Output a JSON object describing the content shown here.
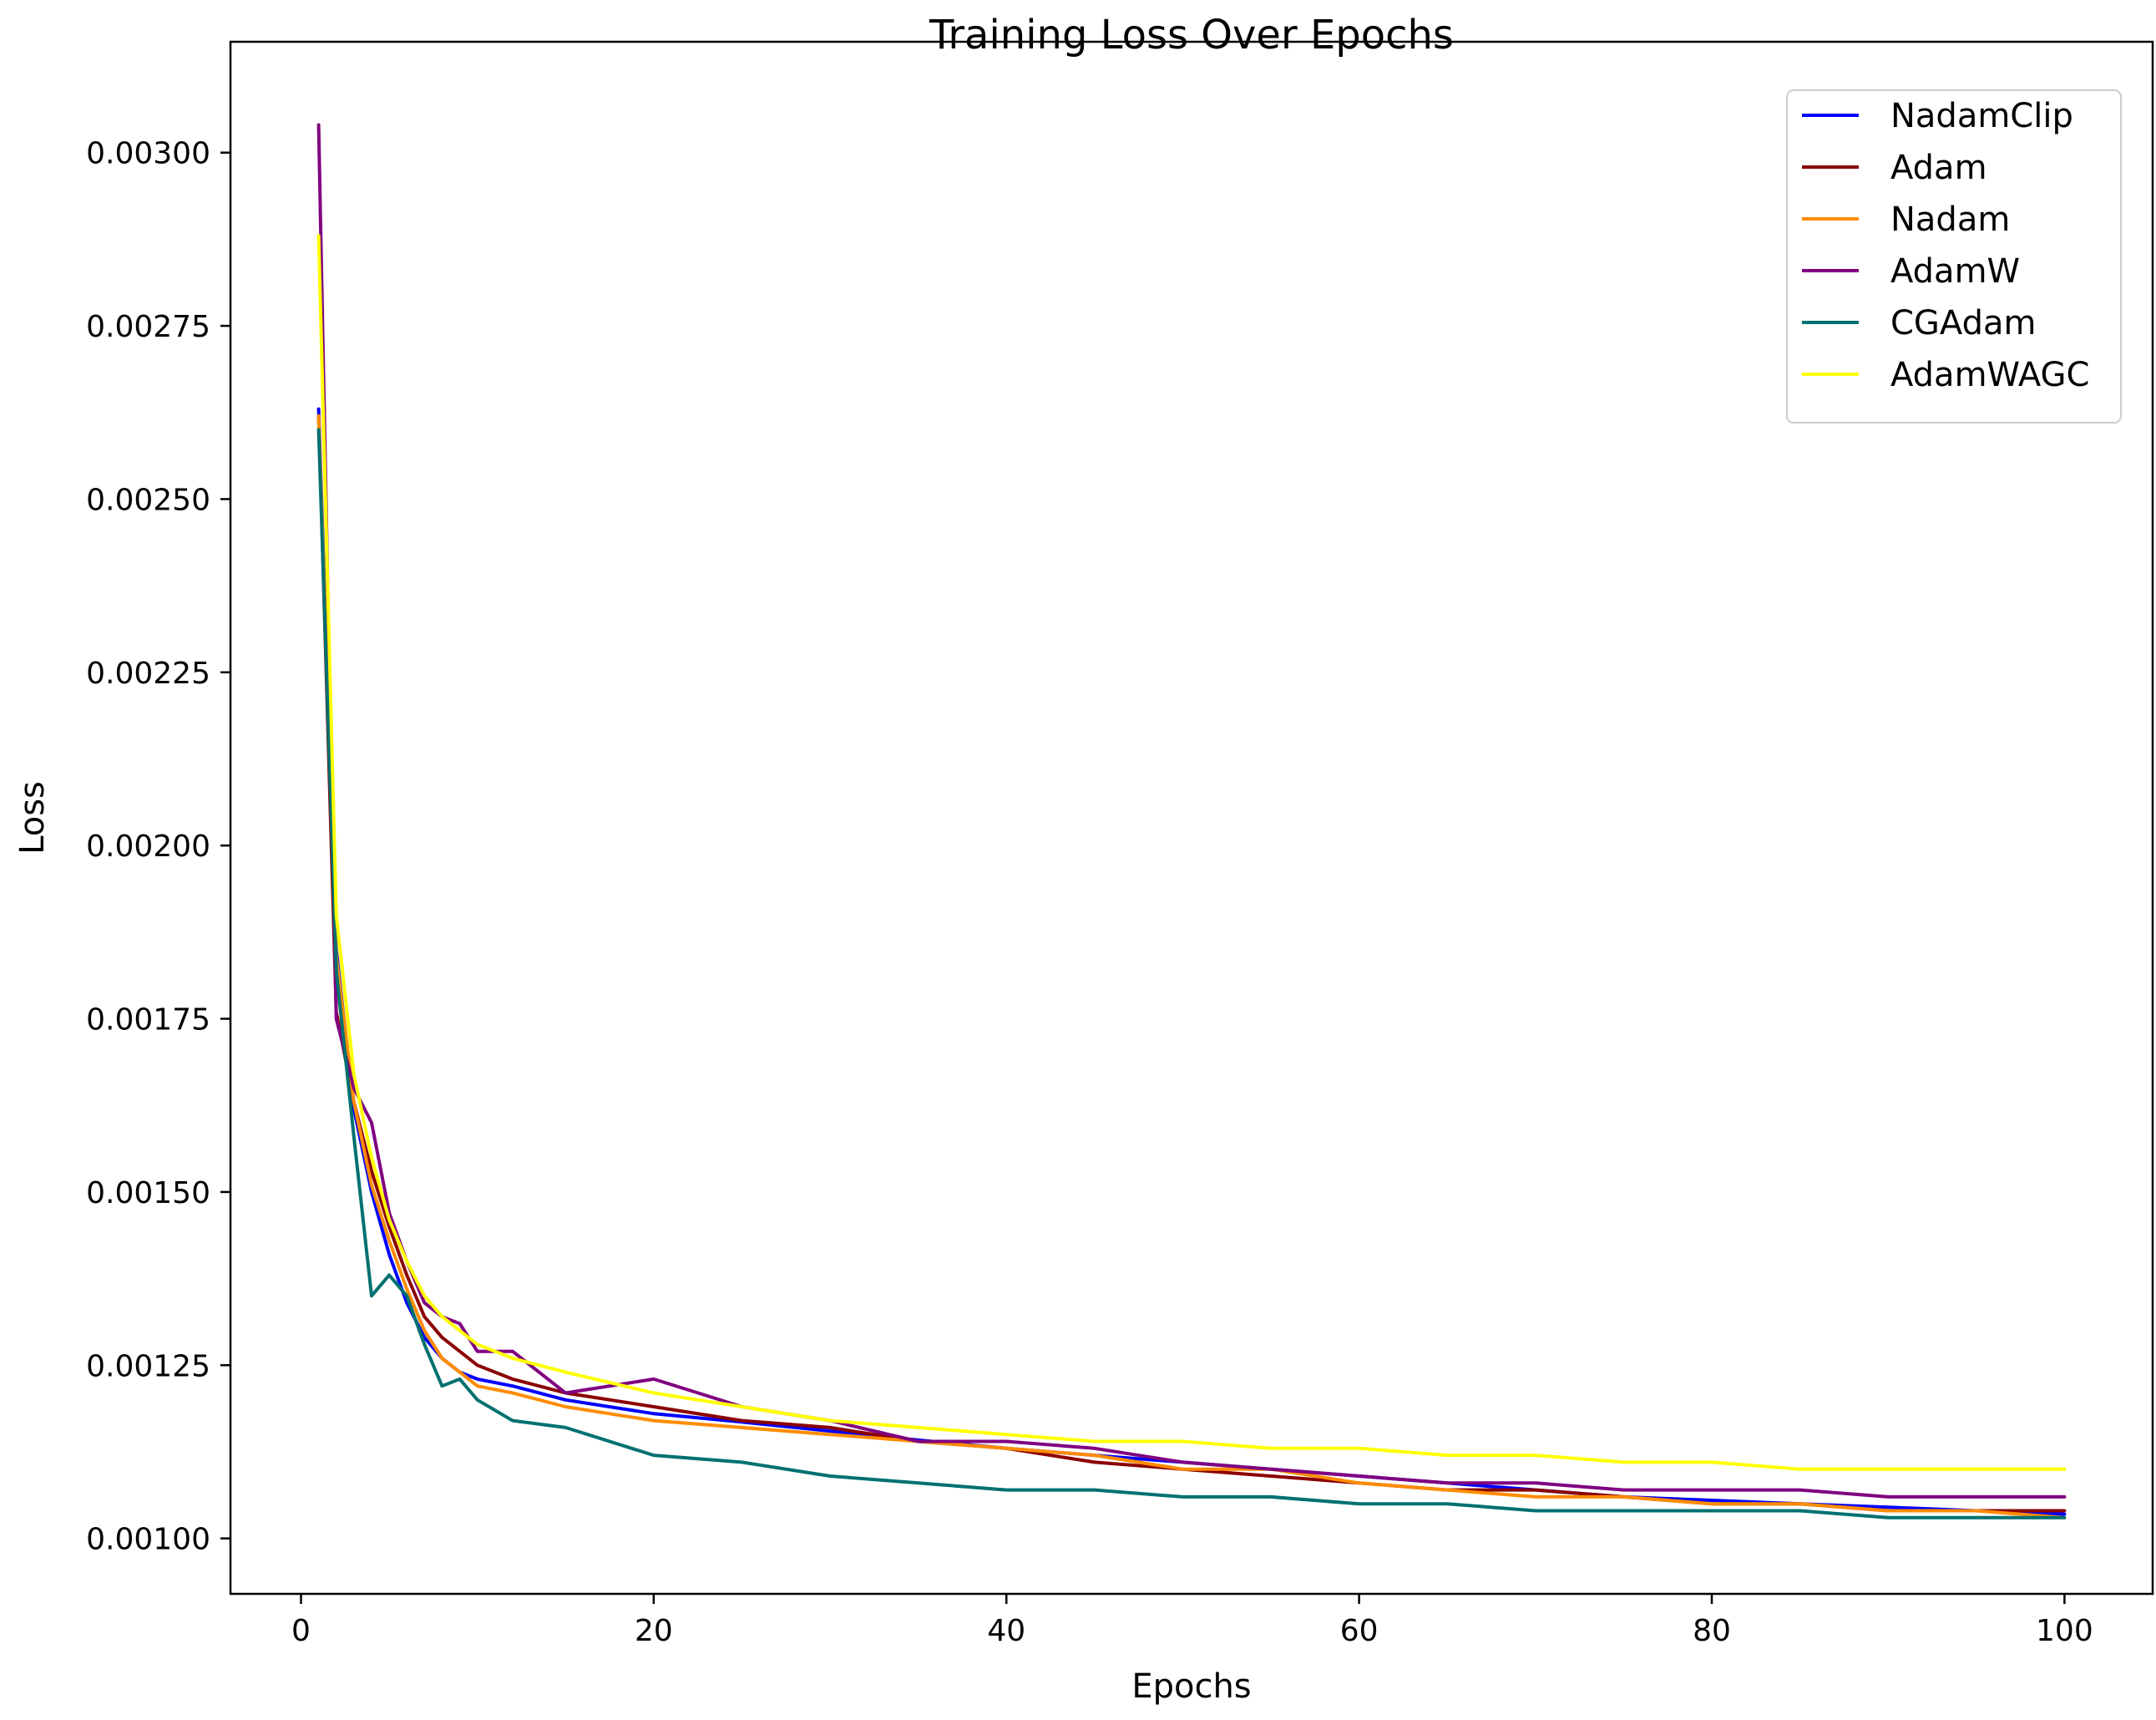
{
  "chart_data": {
    "type": "line",
    "title": "Training Loss Over Epochs",
    "xlabel": "Epochs",
    "ylabel": "Loss",
    "xlim": [
      -4,
      105
    ],
    "ylim": [
      0.00092,
      0.00316
    ],
    "xticks": [
      0,
      20,
      40,
      60,
      80,
      100
    ],
    "xtick_labels": [
      "0",
      "20",
      "40",
      "60",
      "80",
      "100"
    ],
    "yticks": [
      0.001,
      0.00125,
      0.0015,
      0.00175,
      0.002,
      0.00225,
      0.0025,
      0.00275,
      0.003
    ],
    "ytick_labels": [
      "0.00100",
      "0.00125",
      "0.00150",
      "0.00175",
      "0.00200",
      "0.00225",
      "0.00250",
      "0.00275",
      "0.00300"
    ],
    "grid": false,
    "legend_position": "top-right",
    "series": [
      {
        "name": "NadamClip",
        "color": "#0000ff",
        "x": [
          1,
          2,
          3,
          4,
          5,
          6,
          7,
          8,
          9,
          10,
          12,
          15,
          20,
          25,
          30,
          35,
          40,
          45,
          50,
          55,
          60,
          65,
          70,
          75,
          80,
          85,
          90,
          95,
          100
        ],
        "y": [
          0.00263,
          0.00185,
          0.00162,
          0.0015,
          0.00141,
          0.00134,
          0.00129,
          0.00126,
          0.00124,
          0.00123,
          0.00122,
          0.0012,
          0.00118,
          0.001168,
          0.001155,
          0.001142,
          0.00113,
          0.00112,
          0.00111,
          0.0011,
          0.00109,
          0.00108,
          0.00107,
          0.00106,
          0.001055,
          0.00105,
          0.001045,
          0.00104,
          0.001035
        ]
      },
      {
        "name": "Adam",
        "color": "#8b0000",
        "x": [
          1,
          2,
          3,
          4,
          5,
          6,
          7,
          8,
          9,
          10,
          12,
          15,
          20,
          25,
          30,
          35,
          40,
          45,
          50,
          55,
          60,
          65,
          70,
          75,
          80,
          85,
          90,
          95,
          100
        ],
        "y": [
          0.00262,
          0.00176,
          0.00163,
          0.00153,
          0.00145,
          0.00138,
          0.00132,
          0.00129,
          0.00127,
          0.00125,
          0.00123,
          0.00121,
          0.00119,
          0.00117,
          0.00116,
          0.00114,
          0.00113,
          0.00111,
          0.0011,
          0.00109,
          0.00108,
          0.00107,
          0.00107,
          0.00106,
          0.00105,
          0.00105,
          0.00104,
          0.00104,
          0.00104
        ]
      },
      {
        "name": "Nadam",
        "color": "#ff8c00",
        "x": [
          1,
          2,
          3,
          4,
          5,
          6,
          7,
          8,
          9,
          10,
          12,
          15,
          20,
          25,
          30,
          35,
          40,
          45,
          50,
          55,
          60,
          65,
          70,
          75,
          80,
          85,
          90,
          95,
          100
        ],
        "y": [
          0.00262,
          0.00184,
          0.00163,
          0.00151,
          0.00143,
          0.00136,
          0.0013,
          0.00126,
          0.00124,
          0.00122,
          0.00121,
          0.00119,
          0.00117,
          0.00116,
          0.00115,
          0.00114,
          0.00113,
          0.00112,
          0.0011,
          0.0011,
          0.00108,
          0.00107,
          0.00106,
          0.00106,
          0.00105,
          0.00105,
          0.00104,
          0.00104,
          0.00103
        ]
      },
      {
        "name": "AdamW",
        "color": "#800080",
        "x": [
          1,
          2,
          3,
          4,
          5,
          6,
          7,
          8,
          9,
          10,
          12,
          15,
          20,
          25,
          30,
          35,
          40,
          45,
          50,
          55,
          60,
          65,
          70,
          75,
          80,
          85,
          90,
          95,
          100
        ],
        "y": [
          0.00304,
          0.00175,
          0.00165,
          0.0016,
          0.00147,
          0.0014,
          0.00134,
          0.00132,
          0.00131,
          0.00127,
          0.00127,
          0.00121,
          0.00123,
          0.00119,
          0.00117,
          0.00114,
          0.00114,
          0.00113,
          0.00111,
          0.0011,
          0.00109,
          0.00108,
          0.00108,
          0.00107,
          0.00107,
          0.00107,
          0.00106,
          0.00106,
          0.00106
        ]
      },
      {
        "name": "CGAdam",
        "color": "#007070",
        "x": [
          1,
          2,
          3,
          4,
          5,
          6,
          7,
          8,
          9,
          10,
          12,
          15,
          20,
          25,
          30,
          35,
          40,
          45,
          50,
          55,
          60,
          65,
          70,
          75,
          80,
          85,
          90,
          95,
          100
        ],
        "y": [
          0.0026,
          0.00182,
          0.00158,
          0.00135,
          0.00138,
          0.00135,
          0.00128,
          0.00122,
          0.00123,
          0.0012,
          0.00117,
          0.00116,
          0.00112,
          0.00111,
          0.00109,
          0.00108,
          0.00107,
          0.00107,
          0.00106,
          0.00106,
          0.00105,
          0.00105,
          0.00104,
          0.00104,
          0.00104,
          0.00104,
          0.00103,
          0.00103,
          0.00103
        ]
      },
      {
        "name": "AdamWAGC",
        "color": "#ffff00",
        "x": [
          1,
          2,
          3,
          4,
          5,
          6,
          7,
          8,
          9,
          10,
          12,
          15,
          20,
          25,
          30,
          35,
          40,
          45,
          50,
          55,
          60,
          65,
          70,
          75,
          80,
          85,
          90,
          95,
          100
        ],
        "y": [
          0.00288,
          0.0019,
          0.00167,
          0.00155,
          0.00146,
          0.0014,
          0.00135,
          0.00132,
          0.0013,
          0.00128,
          0.00126,
          0.00124,
          0.00121,
          0.00119,
          0.00117,
          0.00116,
          0.00115,
          0.00114,
          0.00114,
          0.00113,
          0.00113,
          0.00112,
          0.00112,
          0.00111,
          0.00111,
          0.0011,
          0.0011,
          0.0011,
          0.0011
        ]
      }
    ]
  }
}
